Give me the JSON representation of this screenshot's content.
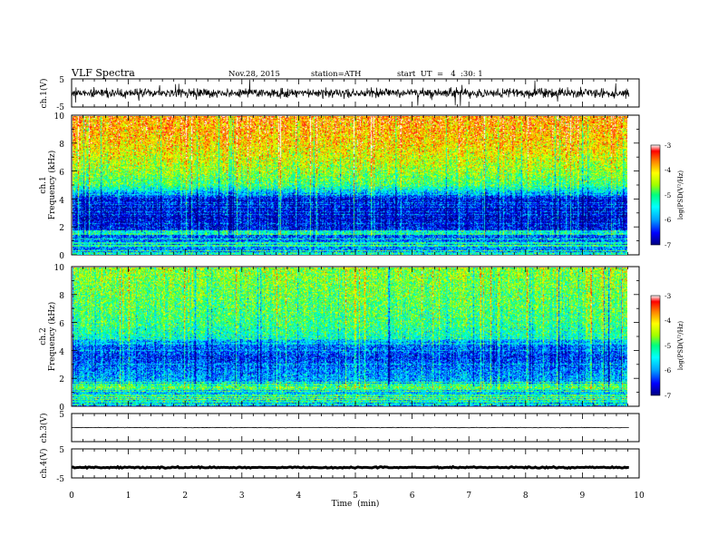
{
  "header": {
    "title": "VLF Spectra",
    "date": "Nov.28, 2015",
    "station": "station=ATH",
    "start": "start  UT  =   4  :30: 1"
  },
  "colorbar": {
    "label": "log(PSD(V²/Hz)",
    "colormap": [
      "#000080",
      "#0000ff",
      "#00a0ff",
      "#00ffff",
      "#00ff80",
      "#a0ff00",
      "#ffff00",
      "#ff8000",
      "#ff0000",
      "#ffffff"
    ]
  },
  "chart_data": [
    {
      "type": "line",
      "panel": "ch1-waveform",
      "ylabel": "ch.1(V)",
      "yticks": [
        "5",
        "-5"
      ],
      "ylim": [
        -5,
        5
      ],
      "xlim": [
        0,
        10
      ],
      "signal": {
        "baseline": 0,
        "noise_amplitude": 2.2,
        "spike_amplitude": 4.0
      }
    },
    {
      "type": "heatmap",
      "panel": "ch1-spectrogram",
      "ylabel": "ch.1\nFrequency (kHz)",
      "yticks": [
        "0",
        "2",
        "4",
        "6",
        "8",
        "10"
      ],
      "ylim": [
        0,
        10
      ],
      "xlim": [
        0,
        9.82
      ],
      "zlim": [
        -7,
        -3
      ],
      "zticks": [
        "-3",
        "-4",
        "-5",
        "-6",
        "-7"
      ],
      "z_profile": {
        "freq_khz": [
          0,
          0.5,
          1.5,
          2.0,
          3.0,
          4.0,
          4.6,
          5.0,
          6.0,
          7.0,
          8.0,
          9.0,
          10.0
        ],
        "log_psd": [
          -6.2,
          -6.0,
          -6.3,
          -6.6,
          -6.7,
          -6.6,
          -5.6,
          -5.0,
          -4.6,
          -4.3,
          -4.0,
          -3.8,
          -3.7
        ]
      }
    },
    {
      "type": "heatmap",
      "panel": "ch2-spectrogram",
      "ylabel": "ch.2\nFrequency (kHz)",
      "yticks": [
        "0",
        "2",
        "4",
        "6",
        "8",
        "10"
      ],
      "ylim": [
        0,
        10
      ],
      "xlim": [
        0,
        9.82
      ],
      "zlim": [
        -7,
        -3
      ],
      "zticks": [
        "-3",
        "-4",
        "-5",
        "-6",
        "-7"
      ],
      "z_profile": {
        "freq_khz": [
          0,
          0.5,
          1.0,
          2.0,
          3.0,
          3.5,
          4.5,
          5.0,
          6.0,
          7.0,
          8.0,
          9.0,
          10.0
        ],
        "log_psd": [
          -6.3,
          -5.6,
          -5.8,
          -5.9,
          -6.2,
          -6.4,
          -6.1,
          -5.3,
          -5.0,
          -4.9,
          -4.8,
          -4.7,
          -4.6
        ]
      }
    },
    {
      "type": "line",
      "panel": "ch3-waveform",
      "ylabel": "ch.3(V)",
      "yticks": [
        "5"
      ],
      "ylim": [
        -5,
        5
      ],
      "xlim": [
        0,
        9.82
      ],
      "signal": {
        "baseline": 0,
        "noise_amplitude": 0.15
      }
    },
    {
      "type": "line",
      "panel": "ch4-waveform",
      "ylabel": "ch.4(V)",
      "yticks": [
        "5",
        "-5"
      ],
      "ylim": [
        -5,
        5
      ],
      "xlim": [
        0,
        9.82
      ],
      "signal": {
        "baseline": -1.4,
        "noise_amplitude": 0.3
      }
    }
  ],
  "xaxis": {
    "label": "Time  (min)",
    "ticks": [
      "0",
      "1",
      "2",
      "3",
      "4",
      "5",
      "6",
      "7",
      "8",
      "9",
      "10"
    ],
    "xlim": [
      0,
      10
    ]
  }
}
